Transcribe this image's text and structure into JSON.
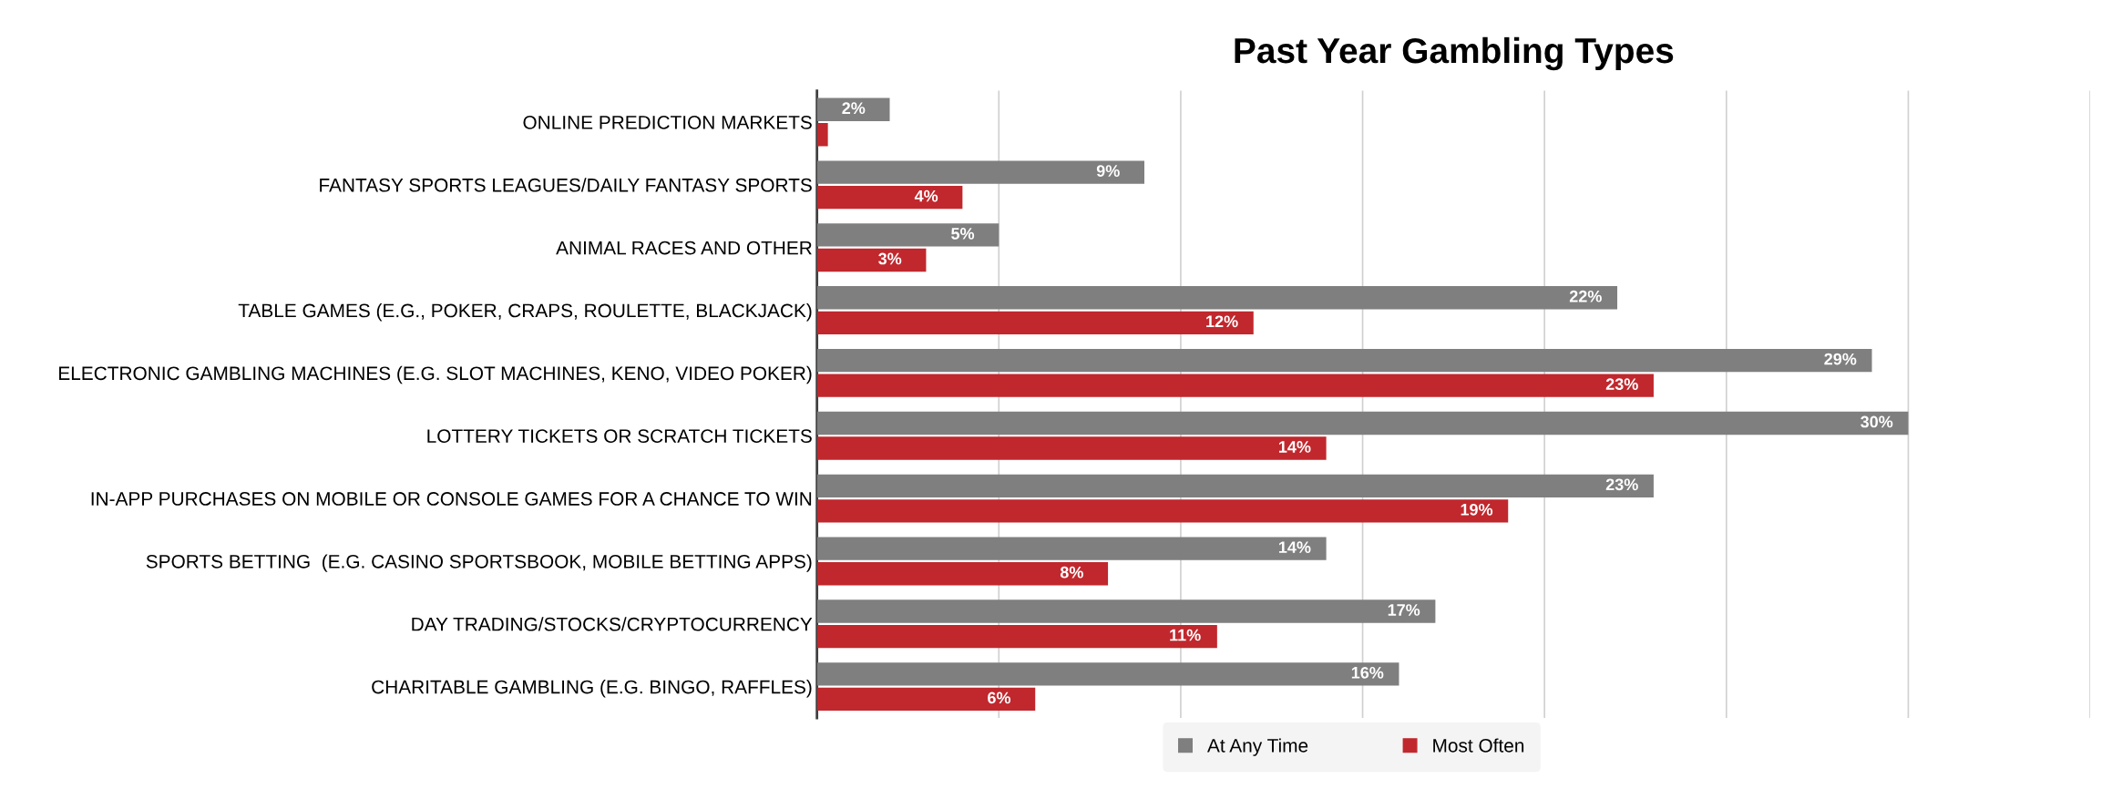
{
  "chart_data": {
    "type": "bar",
    "orientation": "horizontal",
    "title": "Past Year Gambling Types",
    "categories": [
      "ONLINE PREDICTION MARKETS",
      "FANTASY SPORTS LEAGUES/DAILY FANTASY SPORTS",
      "ANIMAL RACES AND OTHER",
      "TABLE GAMES (E.G., POKER, CRAPS, ROULETTE, BLACKJACK)",
      "ELECTRONIC GAMBLING MACHINES (E.G. SLOT MACHINES, KENO, VIDEO POKER)",
      "LOTTERY TICKETS OR SCRATCH TICKETS",
      "IN-APP PURCHASES ON MOBILE OR CONSOLE GAMES FOR A CHANCE TO WIN",
      "SPORTS BETTING  (E.G. CASINO SPORTSBOOK, MOBILE BETTING APPS)",
      "DAY TRADING/STOCKS/CRYPTOCURRENCY",
      "CHARITABLE GAMBLING (E.G. BINGO, RAFFLES)"
    ],
    "series": [
      {
        "name": "At Any Time",
        "color": "#7f7f7f",
        "values": [
          2,
          9,
          5,
          22,
          29,
          30,
          23,
          14,
          17,
          16
        ],
        "value_labels": [
          "2%",
          "9%",
          "5%",
          "22%",
          "29%",
          "30%",
          "23%",
          "14%",
          "17%",
          "16%"
        ]
      },
      {
        "name": "Most Often",
        "color": "#c0282d",
        "values": [
          0.3,
          4,
          3,
          12,
          23,
          14,
          19,
          8,
          11,
          6
        ],
        "value_labels": [
          null,
          "4%",
          "3%",
          "12%",
          "23%",
          "14%",
          "19%",
          "8%",
          "11%",
          "6%"
        ]
      }
    ],
    "xlim": [
      0,
      35
    ],
    "xticks": [
      {
        "value": 0,
        "label": null
      },
      {
        "value": 5,
        "label": null
      },
      {
        "value": 10,
        "label": null
      },
      {
        "value": 15,
        "label": null
      },
      {
        "value": 20,
        "label": null
      },
      {
        "value": 25,
        "label": null
      },
      {
        "value": 30,
        "label": null
      },
      {
        "value": 35,
        "label": null
      }
    ],
    "tick_labels": "y",
    "grid": "x",
    "legend": "bottom"
  }
}
